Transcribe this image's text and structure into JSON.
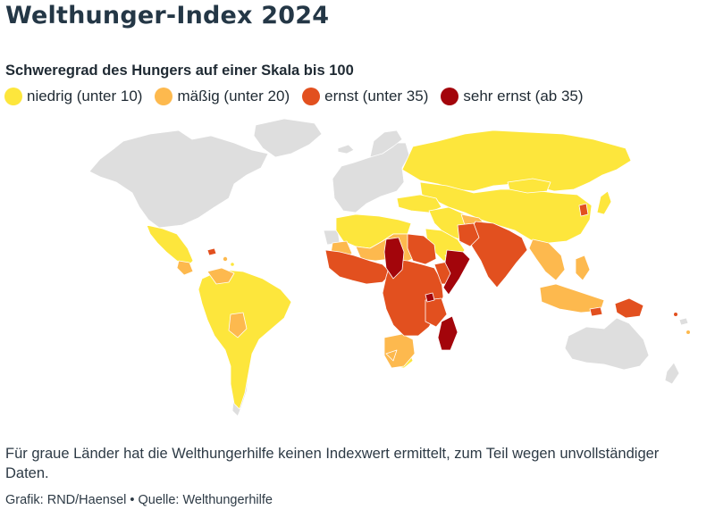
{
  "title": "Welthunger-Index 2024",
  "subtitle": "Schweregrad des Hungers auf einer Skala bis 100",
  "legend": [
    {
      "label": "niedrig (unter 10)",
      "color": "#fde63c"
    },
    {
      "label": "mäßig (unter 20)",
      "color": "#fdb94e"
    },
    {
      "label": "ernst (unter 35)",
      "color": "#e2501f"
    },
    {
      "label": "sehr ernst (ab 35)",
      "color": "#a3050b"
    }
  ],
  "colors": {
    "no_data": "#dedede",
    "low": "#fde63c",
    "moderate": "#fdb94e",
    "serious": "#e2501f",
    "alarming": "#a3050b"
  },
  "note": "Für graue Länder hat die Welthungerhilfe keinen Indexwert ermittelt, zum Teil wegen unvollständiger Daten.",
  "credit": "Grafik: RND/Haensel • Quelle: Welthungerhilfe"
}
